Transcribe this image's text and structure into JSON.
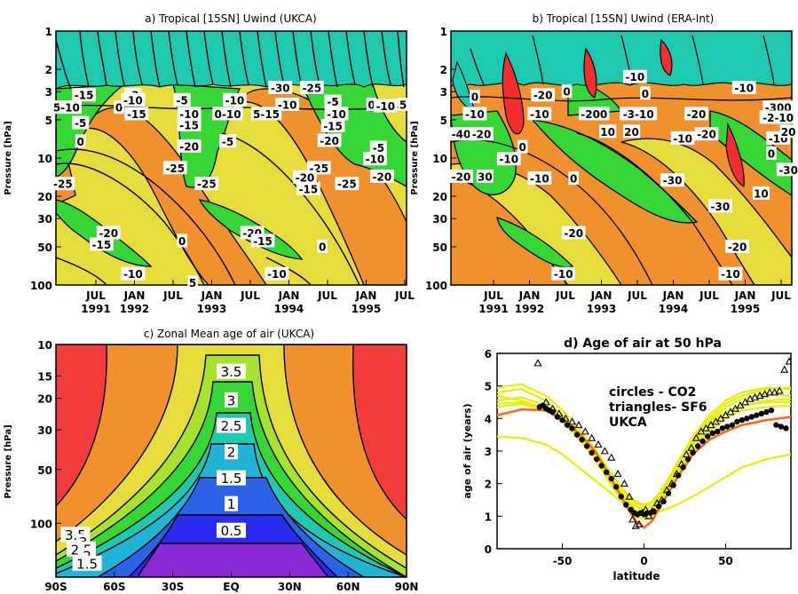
{
  "chart_data": [
    {
      "id": "a",
      "type": "heatmap",
      "title": "a) Tropical [15SN] Uwind (UKCA)",
      "ylabel": "Pressure [hPa]",
      "y_scale": "log",
      "y_ticks": [
        "1",
        "2",
        "3",
        "5",
        "10",
        "20",
        "30",
        "50",
        "100"
      ],
      "x_ticks": [
        {
          "top": "JUL",
          "bottom": "1991"
        },
        {
          "top": "JAN",
          "bottom": "1992"
        },
        {
          "top": "JUL",
          "bottom": ""
        },
        {
          "top": "JAN",
          "bottom": "1993"
        },
        {
          "top": "JUL",
          "bottom": ""
        },
        {
          "top": "JAN",
          "bottom": "1994"
        },
        {
          "top": "JUL",
          "bottom": ""
        },
        {
          "top": "JAN",
          "bottom": "1995"
        },
        {
          "top": "JUL",
          "bottom": ""
        }
      ],
      "contour_labels": [
        {
          "text": "-15",
          "t": 0.08,
          "p": 3.2
        },
        {
          "text": "5-10",
          "t": 0.03,
          "p": 4.0
        },
        {
          "text": "-5",
          "t": 0.07,
          "p": 5.3
        },
        {
          "text": "0",
          "t": 0.07,
          "p": 7.4
        },
        {
          "text": "-3",
          "t": 0.22,
          "p": 3.2
        },
        {
          "text": "0",
          "t": 0.18,
          "p": 4.0
        },
        {
          "text": "-10",
          "t": 0.22,
          "p": 3.5
        },
        {
          "text": "-15",
          "t": 0.23,
          "p": 4.5
        },
        {
          "text": "-5",
          "t": 0.36,
          "p": 3.5
        },
        {
          "text": "-10",
          "t": 0.38,
          "p": 4.5
        },
        {
          "text": "-15",
          "t": 0.38,
          "p": 5.5
        },
        {
          "text": "-20",
          "t": 0.38,
          "p": 8.1
        },
        {
          "text": "-25",
          "t": 0.34,
          "p": 12.0
        },
        {
          "text": "0-10",
          "t": 0.49,
          "p": 4.5
        },
        {
          "text": "-5",
          "t": 0.49,
          "p": 7.4
        },
        {
          "text": "-10",
          "t": 0.51,
          "p": 3.5
        },
        {
          "text": "-30",
          "t": 0.64,
          "p": 2.8
        },
        {
          "text": "-25",
          "t": 0.73,
          "p": 2.8
        },
        {
          "text": "-10",
          "t": 0.66,
          "p": 3.8
        },
        {
          "text": "5-15",
          "t": 0.6,
          "p": 4.5
        },
        {
          "text": "-5",
          "t": 0.79,
          "p": 3.6
        },
        {
          "text": "-10",
          "t": 0.8,
          "p": 4.5
        },
        {
          "text": "-15",
          "t": 0.79,
          "p": 5.6
        },
        {
          "text": "-20",
          "t": 0.78,
          "p": 7.3
        },
        {
          "text": "-25",
          "t": 0.75,
          "p": 12.0
        },
        {
          "text": "-20",
          "t": 0.71,
          "p": 14.2
        },
        {
          "text": "-15",
          "t": 0.72,
          "p": 17.5
        },
        {
          "text": "0",
          "t": 0.9,
          "p": 3.8
        },
        {
          "text": "-10",
          "t": 0.94,
          "p": 3.9
        },
        {
          "text": "5",
          "t": 0.99,
          "p": 3.8
        },
        {
          "text": "-5",
          "t": 0.92,
          "p": 8.3
        },
        {
          "text": "-10",
          "t": 0.91,
          "p": 10.2
        },
        {
          "text": "-20",
          "t": 0.93,
          "p": 14.0
        },
        {
          "text": "-25",
          "t": 0.83,
          "p": 16.0
        },
        {
          "text": "-25",
          "t": 0.02,
          "p": 16.0
        },
        {
          "text": "-25",
          "t": 0.43,
          "p": 16.0
        },
        {
          "text": "-20",
          "t": 0.15,
          "p": 39.0
        },
        {
          "text": "-15",
          "t": 0.13,
          "p": 48.0
        },
        {
          "text": "0",
          "t": 0.36,
          "p": 45.0
        },
        {
          "text": "-20",
          "t": 0.56,
          "p": 39.0
        },
        {
          "text": "-15",
          "t": 0.59,
          "p": 45.0
        },
        {
          "text": "0",
          "t": 0.76,
          "p": 50.0
        },
        {
          "text": "-10",
          "t": 0.22,
          "p": 82.0
        },
        {
          "text": "-10",
          "t": 0.63,
          "p": 82.0
        },
        {
          "text": "5",
          "t": 0.39,
          "p": 96.0
        }
      ]
    },
    {
      "id": "b",
      "type": "heatmap",
      "title": "b) Tropical [15SN] Uwind (ERA-Int)",
      "ylabel": "Pressure [hPa]",
      "y_scale": "log",
      "y_ticks": [
        "1",
        "2",
        "3",
        "5",
        "10",
        "20",
        "30",
        "50",
        "100"
      ],
      "x_ticks": [
        {
          "top": "JUL",
          "bottom": "1991"
        },
        {
          "top": "JAN",
          "bottom": "1992"
        },
        {
          "top": "JUL",
          "bottom": ""
        },
        {
          "top": "JAN",
          "bottom": "1993"
        },
        {
          "top": "JUL",
          "bottom": ""
        },
        {
          "top": "JAN",
          "bottom": "1994"
        },
        {
          "top": "JUL",
          "bottom": ""
        },
        {
          "top": "JAN",
          "bottom": "1995"
        },
        {
          "top": "JUL",
          "bottom": ""
        }
      ],
      "contour_labels": [
        {
          "text": "0",
          "t": 0.07,
          "p": 3.3
        },
        {
          "text": "-10",
          "t": 0.07,
          "p": 4.5
        },
        {
          "text": "-40",
          "t": 0.03,
          "p": 6.5
        },
        {
          "text": "-20",
          "t": 0.09,
          "p": 6.5
        },
        {
          "text": "-20",
          "t": 0.27,
          "p": 3.2
        },
        {
          "text": "0",
          "t": 0.34,
          "p": 3.0
        },
        {
          "text": "-10",
          "t": 0.26,
          "p": 4.5
        },
        {
          "text": "0",
          "t": 0.21,
          "p": 8.2
        },
        {
          "text": "-10",
          "t": 0.17,
          "p": 10.2
        },
        {
          "text": "-20",
          "t": 0.03,
          "p": 14.0
        },
        {
          "text": "30",
          "t": 0.1,
          "p": 14.0
        },
        {
          "text": "-10",
          "t": 0.26,
          "p": 14.5
        },
        {
          "text": "0",
          "t": 0.36,
          "p": 14.5
        },
        {
          "text": "-10",
          "t": 0.54,
          "p": 2.3
        },
        {
          "text": "0",
          "t": 0.57,
          "p": 3.1
        },
        {
          "text": "-200",
          "t": 0.42,
          "p": 4.5
        },
        {
          "text": "-3-10",
          "t": 0.55,
          "p": 4.5
        },
        {
          "text": "10",
          "t": 0.46,
          "p": 6.2
        },
        {
          "text": "20",
          "t": 0.53,
          "p": 6.2
        },
        {
          "text": "-20",
          "t": 0.72,
          "p": 4.5
        },
        {
          "text": "-10",
          "t": 0.68,
          "p": 7.0
        },
        {
          "text": "-20",
          "t": 0.75,
          "p": 6.5
        },
        {
          "text": "-30",
          "t": 0.65,
          "p": 15.0
        },
        {
          "text": "-10",
          "t": 0.86,
          "p": 2.8
        },
        {
          "text": "-300",
          "t": 0.96,
          "p": 4.0
        },
        {
          "text": "-2-10",
          "t": 0.96,
          "p": 4.8
        },
        {
          "text": "-10",
          "t": 0.96,
          "p": 7.0
        },
        {
          "text": "20",
          "t": 0.99,
          "p": 6.2
        },
        {
          "text": "0",
          "t": 0.94,
          "p": 9.2
        },
        {
          "text": "-30",
          "t": 0.99,
          "p": 12.4
        },
        {
          "text": "10",
          "t": 0.91,
          "p": 19.0
        },
        {
          "text": "-30",
          "t": 0.79,
          "p": 24.0
        },
        {
          "text": "-20",
          "t": 0.36,
          "p": 39.0
        },
        {
          "text": "-20",
          "t": 0.84,
          "p": 50.0
        },
        {
          "text": "-10",
          "t": 0.33,
          "p": 82.0
        },
        {
          "text": "-10",
          "t": 0.82,
          "p": 82.0
        }
      ]
    },
    {
      "id": "c",
      "type": "heatmap",
      "title": "c) Zonal Mean age of air (UKCA)",
      "ylabel": "Pressure [hPa]",
      "y_scale": "log",
      "y_ticks": [
        "10",
        "15",
        "20",
        "30",
        "50",
        "100"
      ],
      "x_ticks": [
        "90S",
        "60S",
        "30S",
        "EQ",
        "30N",
        "60N",
        "90N"
      ],
      "contour_labels": [
        {
          "text": "3.5",
          "lat": 0,
          "p": 14.2
        },
        {
          "text": "3",
          "lat": 0,
          "p": 20.5
        },
        {
          "text": "2.5",
          "lat": 0,
          "p": 28.5
        },
        {
          "text": "2",
          "lat": 0,
          "p": 40.0
        },
        {
          "text": "1.5",
          "lat": 0,
          "p": 56.0
        },
        {
          "text": "1",
          "lat": 0,
          "p": 78.0
        },
        {
          "text": "0.5",
          "lat": 0,
          "p": 110.0
        },
        {
          "text": "3.5",
          "lat": -80,
          "p": 116.0
        },
        {
          "text": "3",
          "lat": -76,
          "p": 127.0
        },
        {
          "text": "2.5",
          "lat": -77,
          "p": 140.0
        },
        {
          "text": "2",
          "lat": -74,
          "p": 152.0
        },
        {
          "text": "1.5",
          "lat": -74,
          "p": 168.0
        }
      ]
    },
    {
      "id": "d",
      "type": "scatter",
      "title": "d) Age of air at 50 hPa",
      "xlabel": "latitude",
      "ylabel": "age of air (years)",
      "xlim": [
        -90,
        90
      ],
      "ylim": [
        0,
        6
      ],
      "x_ticks": [
        "-50",
        "0",
        "50"
      ],
      "y_ticks": [
        "0",
        "1",
        "2",
        "3",
        "4",
        "5",
        "6"
      ],
      "legend": [
        "circles  - CO2",
        "triangles- SF6",
        "UKCA"
      ],
      "legend_colors": [
        "#000000",
        "#000000",
        "#ff6a1a"
      ],
      "ukca_line": {
        "color": "#ff6a1a",
        "x": [
          -90,
          -75,
          -60,
          -50,
          -40,
          -30,
          -20,
          -10,
          -5,
          0,
          5,
          10,
          20,
          30,
          40,
          50,
          60,
          75,
          90
        ],
        "y": [
          4.1,
          4.28,
          4.25,
          3.95,
          3.55,
          3.0,
          2.15,
          1.25,
          0.85,
          0.65,
          0.85,
          1.3,
          2.15,
          2.9,
          3.35,
          3.6,
          3.8,
          3.95,
          4.05
        ]
      },
      "model_lines": {
        "color": "#e8f000",
        "x": [
          -90,
          -75,
          -60,
          -50,
          -40,
          -30,
          -20,
          -10,
          -5,
          0,
          5,
          10,
          20,
          30,
          40,
          50,
          60,
          75,
          90
        ],
        "lines": [
          [
            4.8,
            4.9,
            4.55,
            4.1,
            3.55,
            2.9,
            2.15,
            1.5,
            1.3,
            1.2,
            1.3,
            1.6,
            2.5,
            3.35,
            4.0,
            4.45,
            4.7,
            4.9,
            4.95
          ],
          [
            4.95,
            5.05,
            4.7,
            4.25,
            3.7,
            3.05,
            2.3,
            1.6,
            1.4,
            1.3,
            1.4,
            1.7,
            2.6,
            3.45,
            4.1,
            4.55,
            4.8,
            4.95,
            4.9
          ],
          [
            4.55,
            4.65,
            4.4,
            4.0,
            3.45,
            2.8,
            2.0,
            1.35,
            1.15,
            1.05,
            1.15,
            1.45,
            2.35,
            3.2,
            3.9,
            4.35,
            4.6,
            4.75,
            4.7
          ],
          [
            4.45,
            4.5,
            4.3,
            3.95,
            3.5,
            2.9,
            2.1,
            1.45,
            1.2,
            1.1,
            1.2,
            1.5,
            2.3,
            3.1,
            3.7,
            4.15,
            4.4,
            4.5,
            4.5
          ],
          [
            4.7,
            4.55,
            4.3,
            4.0,
            3.6,
            3.05,
            2.3,
            1.65,
            1.45,
            1.35,
            1.45,
            1.75,
            2.55,
            3.3,
            3.85,
            4.2,
            4.4,
            4.55,
            4.6
          ],
          [
            4.35,
            4.45,
            4.25,
            3.9,
            3.4,
            2.75,
            1.95,
            1.25,
            1.0,
            0.9,
            1.0,
            1.3,
            2.2,
            3.0,
            3.6,
            4.0,
            4.25,
            4.35,
            4.4
          ],
          [
            3.45,
            3.4,
            3.2,
            2.9,
            2.5,
            2.1,
            1.7,
            1.3,
            1.15,
            1.1,
            1.1,
            1.15,
            1.35,
            1.6,
            1.9,
            2.2,
            2.5,
            2.75,
            2.9
          ]
        ]
      },
      "circles_co2": {
        "x": [
          -64,
          -62,
          -60,
          -58,
          -56,
          -53,
          -50,
          -47,
          -44,
          -41,
          -38,
          -35,
          -32,
          -29,
          -26,
          -23,
          -20,
          -17,
          -14,
          -11,
          -8,
          -6,
          -4,
          -2,
          0,
          2,
          4,
          6,
          9,
          12,
          15,
          18,
          21,
          24,
          27,
          30,
          33,
          36,
          39,
          42,
          45,
          48,
          51,
          54,
          57,
          60,
          63,
          66,
          69,
          72,
          75,
          78,
          81,
          84,
          87
        ],
        "y": [
          4.35,
          4.4,
          4.3,
          4.25,
          4.2,
          4.05,
          3.95,
          3.8,
          3.7,
          3.5,
          3.35,
          3.15,
          2.95,
          2.75,
          2.55,
          2.35,
          2.15,
          1.9,
          1.6,
          1.35,
          1.2,
          1.1,
          1.05,
          1.1,
          1.05,
          1.1,
          1.1,
          1.15,
          1.3,
          1.45,
          1.7,
          1.95,
          2.25,
          2.5,
          2.75,
          2.95,
          3.15,
          3.3,
          3.45,
          3.55,
          3.6,
          3.7,
          3.75,
          3.8,
          3.9,
          3.95,
          4.0,
          4.05,
          4.1,
          4.15,
          4.2,
          4.25,
          3.8,
          3.75,
          3.7
        ]
      },
      "triangles_sf6": {
        "x": [
          -65,
          -60,
          -56,
          -52,
          -48,
          -44,
          -40,
          -36,
          -32,
          -28,
          -24,
          -20,
          -16,
          -12,
          -9,
          -7,
          -5,
          -3,
          -1,
          1,
          3,
          5,
          8,
          11,
          14,
          17,
          20,
          23,
          26,
          29,
          32,
          35,
          38,
          41,
          44,
          47,
          50,
          53,
          56,
          59,
          62,
          65,
          68,
          71,
          74,
          77,
          80,
          83,
          86,
          89
        ],
        "y": [
          5.7,
          4.5,
          4.3,
          4.15,
          4.0,
          3.9,
          3.8,
          3.6,
          3.4,
          3.2,
          3.0,
          2.8,
          2.3,
          2.0,
          1.6,
          0.9,
          0.7,
          0.75,
          1.1,
          1.2,
          1.0,
          1.15,
          1.4,
          1.5,
          1.8,
          2.0,
          2.3,
          2.6,
          2.9,
          3.1,
          3.4,
          3.6,
          3.7,
          3.8,
          3.9,
          4.0,
          4.1,
          4.2,
          4.3,
          4.4,
          4.5,
          4.6,
          4.65,
          4.7,
          4.75,
          4.8,
          4.8,
          4.85,
          5.5,
          5.75
        ]
      }
    }
  ]
}
